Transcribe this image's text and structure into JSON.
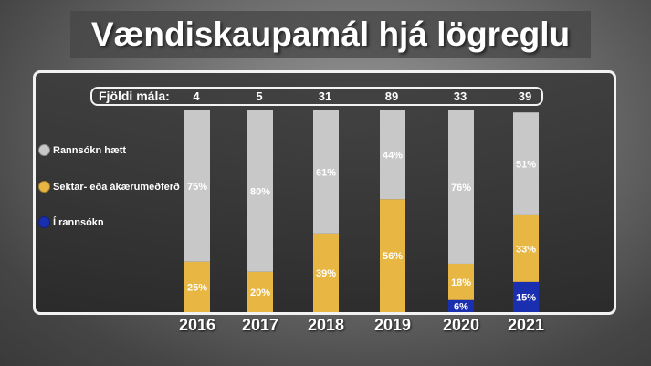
{
  "title": "Vændiskaupamál hjá lögreglu",
  "count_label": "Fjöldi mála:",
  "legend": [
    {
      "label": "Rannsókn hætt",
      "color": "#c8c8c8"
    },
    {
      "label": "Sektar- eða ákærumeðferð",
      "color": "#e8b642"
    },
    {
      "label": "Í rannsókn",
      "color": "#1a2fb0"
    }
  ],
  "chart_data": {
    "type": "bar",
    "stacked": true,
    "categories": [
      "2016",
      "2017",
      "2018",
      "2019",
      "2020",
      "2021"
    ],
    "counts": [
      "4",
      "5",
      "31",
      "89",
      "33",
      "39"
    ],
    "series": [
      {
        "name": "Í rannsókn",
        "color": "#1a2fb0",
        "values": [
          0,
          0,
          0,
          0,
          6,
          15
        ],
        "labels": [
          "",
          "",
          "",
          "",
          "6%",
          "15%"
        ]
      },
      {
        "name": "Sektar- eða ákærumeðferð",
        "color": "#e8b642",
        "values": [
          25,
          20,
          39,
          56,
          18,
          33
        ],
        "labels": [
          "25%",
          "20%",
          "39%",
          "56%",
          "18%",
          "33%"
        ]
      },
      {
        "name": "Rannsókn hætt",
        "color": "#c8c8c8",
        "values": [
          75,
          80,
          61,
          44,
          76,
          51
        ],
        "labels": [
          "75%",
          "80%",
          "61%",
          "44%",
          "76%",
          "51%"
        ]
      }
    ],
    "ylim": [
      0,
      100
    ],
    "grid": false,
    "legend_position": "left"
  }
}
